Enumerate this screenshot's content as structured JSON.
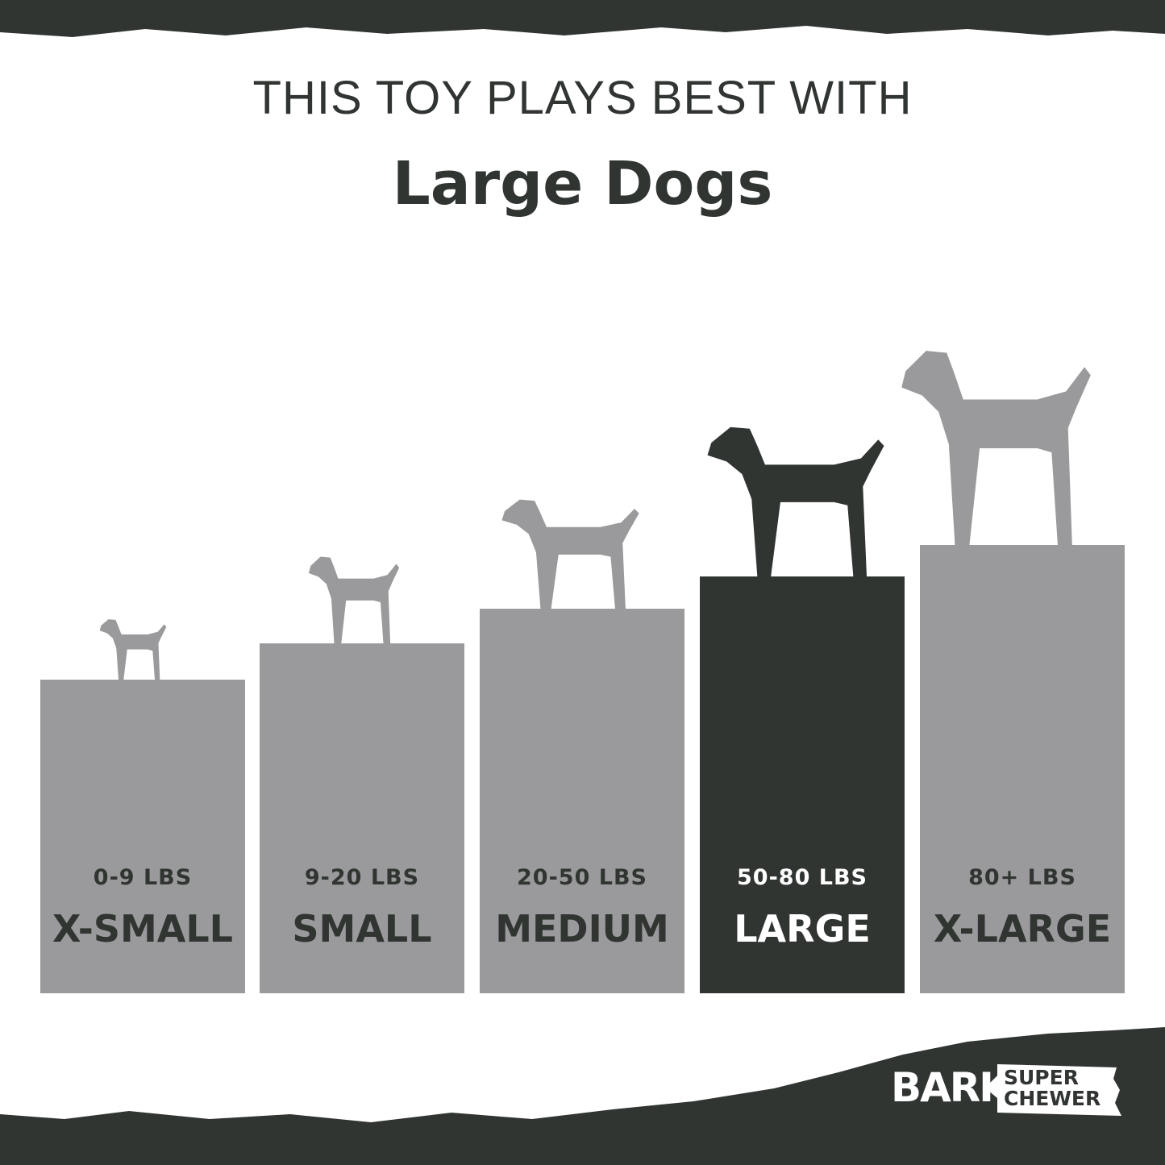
{
  "header": {
    "line1": "THIS TOY PLAYS BEST WITH",
    "line2": "Large Dogs"
  },
  "sizes": [
    {
      "weight": "0-9 LBS",
      "label": "X-SMALL",
      "highlighted": false
    },
    {
      "weight": "9-20 LBS",
      "label": "SMALL",
      "highlighted": false
    },
    {
      "weight": "20-50 LBS",
      "label": "MEDIUM",
      "highlighted": false
    },
    {
      "weight": "50-80 LBS",
      "label": "LARGE",
      "highlighted": true
    },
    {
      "weight": "80+ LBS",
      "label": "X-LARGE",
      "highlighted": false
    }
  ],
  "logo": {
    "brand": "BARK",
    "tagline1": "SUPER",
    "tagline2": "CHEWER"
  },
  "colors": {
    "dark": "#313532",
    "gray": "#9a9a9c",
    "background": "#ffffff"
  }
}
